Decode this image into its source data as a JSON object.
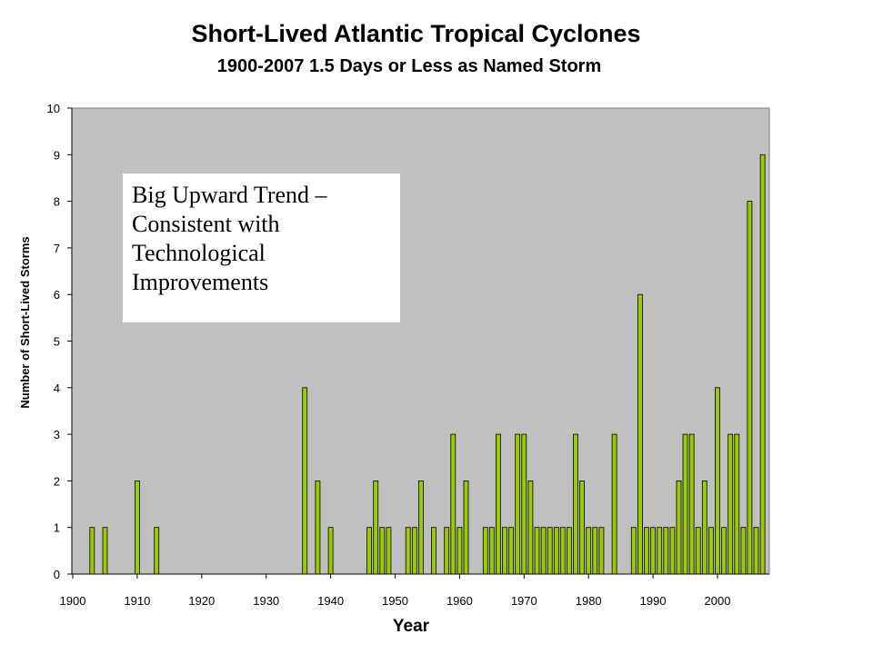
{
  "chart_data": {
    "type": "bar",
    "title": "Short-Lived Atlantic Tropical Cyclones",
    "subtitle": "1900-2007 1.5 Days or Less as Named Storm",
    "xlabel": "Year",
    "ylabel": "Number of Short-Lived Storms",
    "xlim": [
      1900,
      2007
    ],
    "ylim": [
      0,
      10
    ],
    "x_ticks": [
      "1900",
      "1910",
      "1920",
      "1930",
      "1940",
      "1950",
      "1960",
      "1970",
      "1980",
      "1990",
      "2000"
    ],
    "y_ticks": [
      "0",
      "1",
      "2",
      "3",
      "4",
      "5",
      "6",
      "7",
      "8",
      "9",
      "10"
    ],
    "grid": false,
    "annotation": "Big Upward Trend – Consistent with Technological Improvements",
    "colors": {
      "bar": "#99cc00",
      "bar_outline": "#000000",
      "plot_bg": "#c0c0c0"
    },
    "x": [
      1903,
      1905,
      1910,
      1913,
      1936,
      1938,
      1940,
      1946,
      1947,
      1948,
      1949,
      1952,
      1953,
      1954,
      1956,
      1958,
      1959,
      1960,
      1961,
      1964,
      1965,
      1966,
      1967,
      1968,
      1969,
      1970,
      1971,
      1972,
      1973,
      1974,
      1975,
      1976,
      1977,
      1978,
      1979,
      1980,
      1981,
      1982,
      1984,
      1987,
      1988,
      1989,
      1990,
      1991,
      1992,
      1993,
      1994,
      1995,
      1996,
      1997,
      1998,
      1999,
      2000,
      2001,
      2002,
      2003,
      2004,
      2005,
      2006,
      2007
    ],
    "values": [
      1,
      1,
      2,
      1,
      4,
      2,
      1,
      1,
      2,
      1,
      1,
      1,
      1,
      2,
      1,
      1,
      3,
      1,
      2,
      1,
      1,
      3,
      1,
      1,
      3,
      3,
      2,
      1,
      1,
      1,
      1,
      1,
      1,
      3,
      2,
      1,
      1,
      1,
      3,
      1,
      6,
      1,
      1,
      1,
      1,
      1,
      2,
      3,
      3,
      1,
      2,
      1,
      4,
      1,
      3,
      3,
      1,
      8,
      1,
      9
    ]
  }
}
